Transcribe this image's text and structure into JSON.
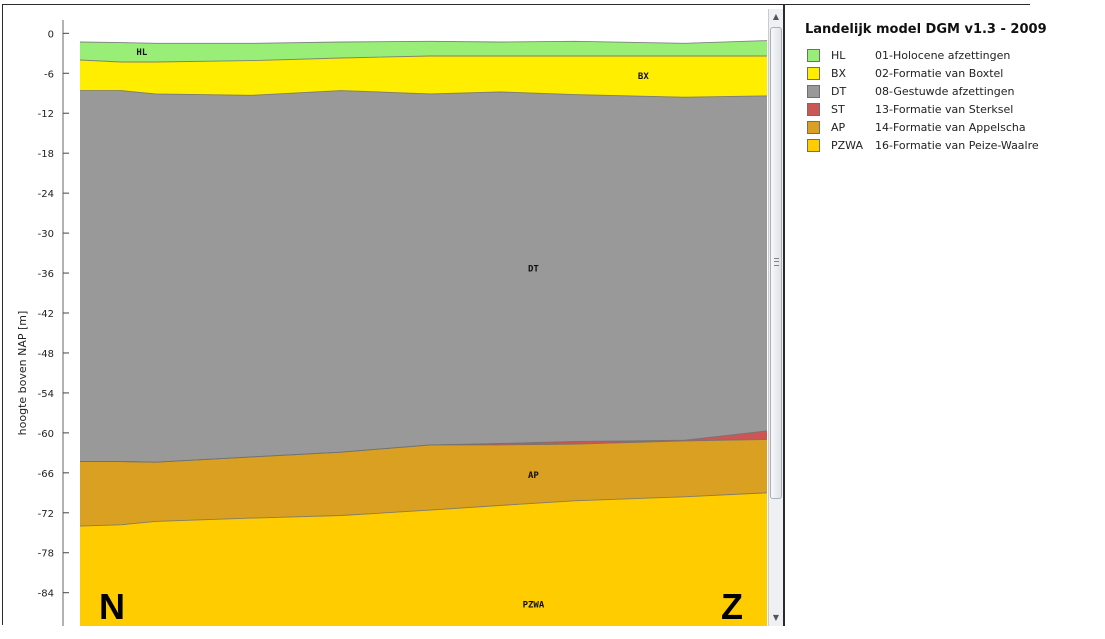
{
  "chart_data": {
    "type": "area",
    "ylabel": "hoogte boven NAP [m]",
    "xlabel": "",
    "x": [
      0,
      6,
      11,
      25,
      38,
      51,
      61,
      72,
      88,
      100
    ],
    "ylim": [
      -89,
      2
    ],
    "yticks": [
      0,
      -6,
      -12,
      -18,
      -24,
      -30,
      -36,
      -42,
      -48,
      -54,
      -60,
      -66,
      -72,
      -78,
      -84
    ],
    "ytick_labels": [
      "0",
      "-6",
      "-12",
      "-18",
      "-24",
      "-30",
      "-36",
      "-42",
      "-48",
      "-54",
      "-60",
      "-66",
      "-72",
      "-78",
      "-84"
    ],
    "surface": [
      -1.3,
      -1.4,
      -1.5,
      -1.5,
      -1.3,
      -1.2,
      -1.3,
      -1.2,
      -1.5,
      -1.1
    ],
    "layers": [
      {
        "code": "HL",
        "name": "01-Holocene afzettingen",
        "color": "#99ee77",
        "bottom": [
          -4.0,
          -4.3,
          -4.3,
          -4.1,
          -3.7,
          -3.4,
          -3.4,
          -3.4,
          -3.4,
          -3.4
        ]
      },
      {
        "code": "BX",
        "name": "02-Formatie van Boxtel",
        "color": "#ffee00",
        "bottom": [
          -8.6,
          -8.6,
          -9.1,
          -9.3,
          -8.6,
          -9.1,
          -8.8,
          -9.2,
          -9.6,
          -9.4
        ]
      },
      {
        "code": "DT",
        "name": "08-Gestuwde afzettingen",
        "color": "#999999",
        "bottom": [
          -64.3,
          -64.3,
          -64.4,
          -63.6,
          -62.9,
          -61.8,
          -61.6,
          -61.3,
          -61.1,
          -59.7
        ]
      },
      {
        "code": "ST",
        "name": "13-Formatie van Sterksel",
        "color": "#cc5555",
        "bottom": [
          -64.3,
          -64.3,
          -64.4,
          -63.6,
          -62.9,
          -61.8,
          -61.8,
          -61.7,
          -61.2,
          -61.0
        ]
      },
      {
        "code": "AP",
        "name": "14-Formatie van Appelscha",
        "color": "#daa022",
        "bottom": [
          -74.0,
          -73.8,
          -73.3,
          -72.8,
          -72.4,
          -71.6,
          -70.9,
          -70.2,
          -69.6,
          -69.0
        ]
      },
      {
        "code": "PZWA",
        "name": "16-Formatie van Peize-Waalre",
        "color": "#ffcc00",
        "bottom": [
          -89,
          -89,
          -89,
          -89,
          -89,
          -89,
          -89,
          -89,
          -89,
          -89
        ]
      }
    ],
    "annotations": [
      {
        "text": "HL",
        "x": 9,
        "y": -2.8
      },
      {
        "text": "BX",
        "x": 82,
        "y": -6.4
      },
      {
        "text": "DT",
        "x": 66,
        "y": -35.3
      },
      {
        "text": "AP",
        "x": 66,
        "y": -66.3
      },
      {
        "text": "PZWA",
        "x": 66,
        "y": -85.8
      }
    ],
    "direction_labels": {
      "left": "N",
      "right": "Z"
    }
  },
  "legend": {
    "title": "Landelijk model DGM v1.3 - 2009",
    "items": [
      {
        "code": "HL",
        "label": "01-Holocene afzettingen",
        "color": "#99ee77"
      },
      {
        "code": "BX",
        "label": "02-Formatie van Boxtel",
        "color": "#ffee00"
      },
      {
        "code": "DT",
        "label": "08-Gestuwde afzettingen",
        "color": "#999999"
      },
      {
        "code": "ST",
        "label": "13-Formatie van Sterksel",
        "color": "#cc5555"
      },
      {
        "code": "AP",
        "label": "14-Formatie van Appelscha",
        "color": "#daa022"
      },
      {
        "code": "PZWA",
        "label": "16-Formatie van Peize-Waalre",
        "color": "#ffcc00"
      }
    ]
  },
  "scrollbar": {
    "up_icon": "arrow-up-icon",
    "down_icon": "arrow-down-icon",
    "up_glyph": "▲",
    "down_glyph": "▼"
  }
}
